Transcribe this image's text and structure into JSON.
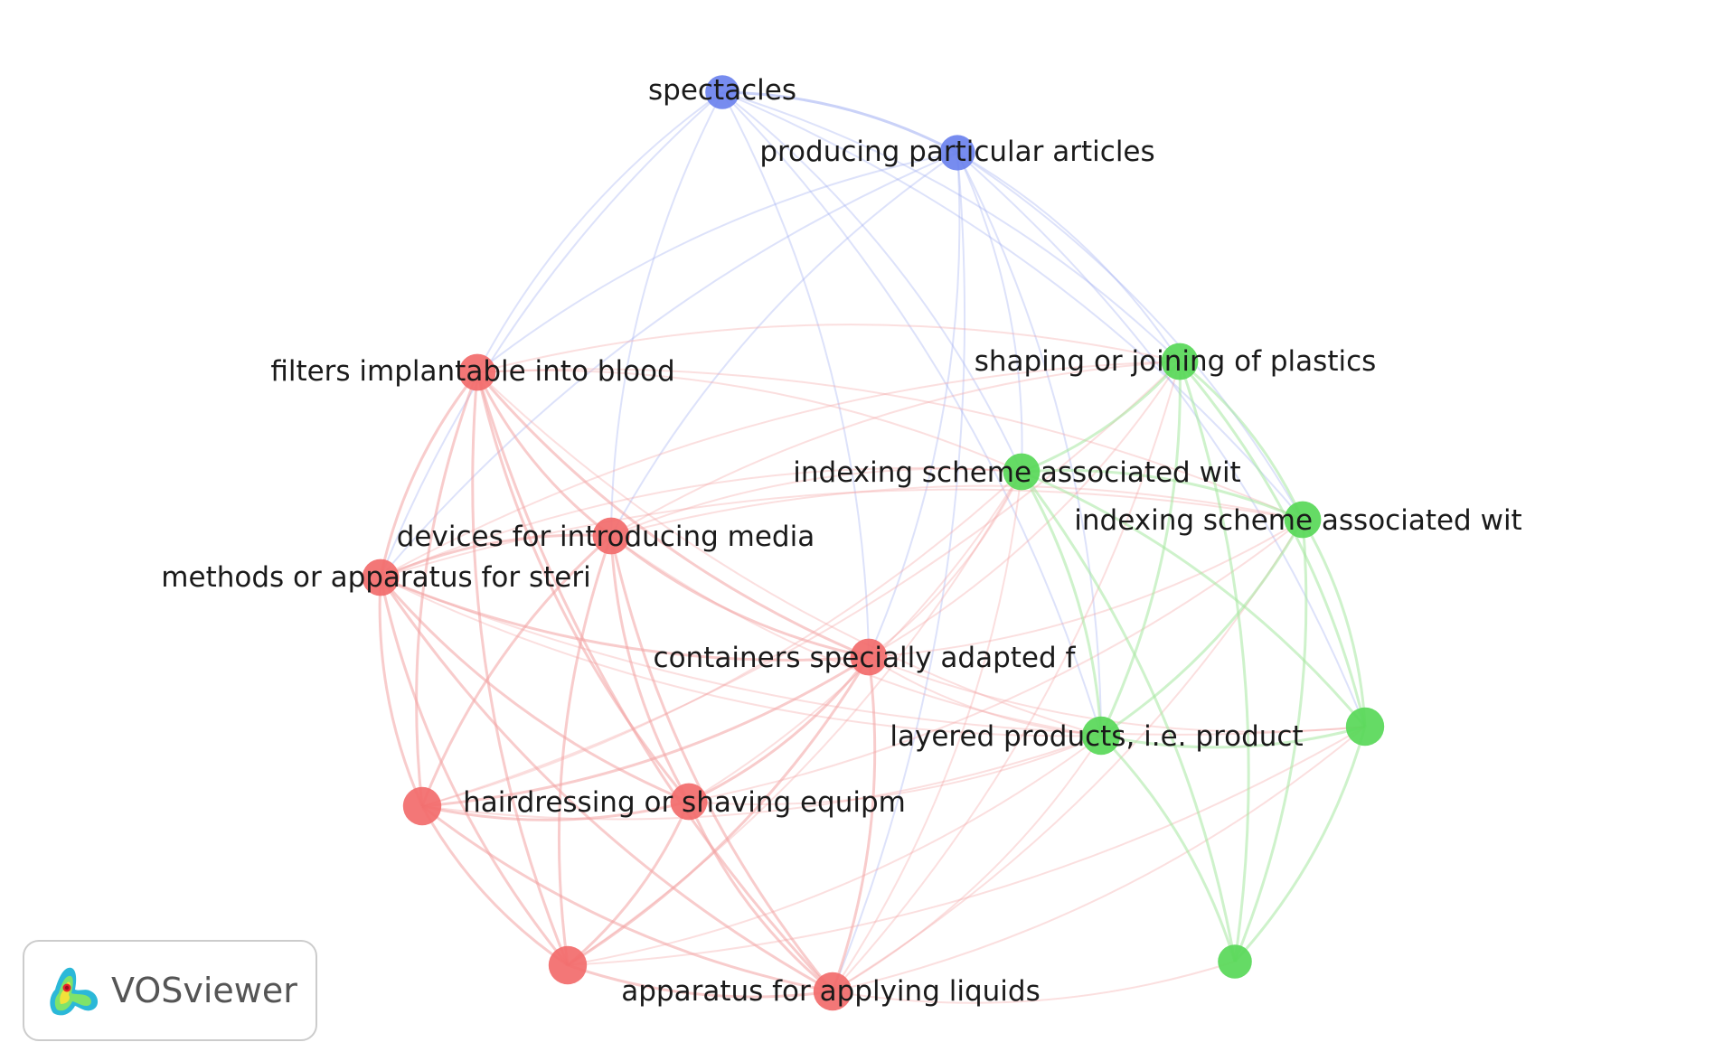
{
  "map": {
    "nodes": [
      {
        "id": "spectacles",
        "label": "spectacles",
        "cluster": "blue",
        "weight": 0.55
      },
      {
        "id": "producing",
        "label": "producing particular articles",
        "cluster": "blue",
        "weight": 0.6
      },
      {
        "id": "filters",
        "label": "filters implantable into blood",
        "cluster": "red",
        "weight": 0.65
      },
      {
        "id": "shaping",
        "label": "shaping or joining of plastics",
        "cluster": "green",
        "weight": 0.65
      },
      {
        "id": "indexing1",
        "label": "indexing scheme associated wit",
        "cluster": "green",
        "weight": 0.65
      },
      {
        "id": "indexing2",
        "label": "indexing scheme associated wit",
        "cluster": "green",
        "weight": 0.65
      },
      {
        "id": "devices",
        "label": "devices for introducing media",
        "cluster": "red",
        "weight": 0.65
      },
      {
        "id": "methods",
        "label": "methods or apparatus for steri",
        "cluster": "red",
        "weight": 0.65
      },
      {
        "id": "containers",
        "label": "containers specially adapted f",
        "cluster": "red",
        "weight": 0.65
      },
      {
        "id": "layered",
        "label": "layered products, i.e. product",
        "cluster": "green",
        "weight": 0.7
      },
      {
        "id": "green_unlabeled_a",
        "label": "",
        "cluster": "green",
        "weight": 0.7
      },
      {
        "id": "red_unlabeled_a",
        "label": "",
        "cluster": "red",
        "weight": 0.7
      },
      {
        "id": "hairdressing",
        "label": "hairdressing or shaving equipm",
        "cluster": "red",
        "weight": 0.65
      },
      {
        "id": "red_unlabeled_b",
        "label": "",
        "cluster": "red",
        "weight": 0.7
      },
      {
        "id": "apparatus",
        "label": "apparatus for applying liquids",
        "cluster": "red",
        "weight": 0.7
      },
      {
        "id": "green_unlabeled_b",
        "label": "",
        "cluster": "green",
        "weight": 0.55
      }
    ],
    "links": [
      [
        "spectacles",
        "producing"
      ],
      [
        "spectacles",
        "filters"
      ],
      [
        "spectacles",
        "methods"
      ],
      [
        "spectacles",
        "shaping"
      ],
      [
        "spectacles",
        "indexing1"
      ],
      [
        "spectacles",
        "indexing2"
      ],
      [
        "spectacles",
        "containers"
      ],
      [
        "spectacles",
        "layered"
      ],
      [
        "spectacles",
        "devices"
      ],
      [
        "producing",
        "shaping"
      ],
      [
        "producing",
        "indexing1"
      ],
      [
        "producing",
        "indexing2"
      ],
      [
        "producing",
        "layered"
      ],
      [
        "producing",
        "green_unlabeled_a"
      ],
      [
        "producing",
        "filters"
      ],
      [
        "producing",
        "methods"
      ],
      [
        "producing",
        "containers"
      ],
      [
        "producing",
        "devices"
      ],
      [
        "producing",
        "apparatus"
      ],
      [
        "filters",
        "methods"
      ],
      [
        "filters",
        "devices"
      ],
      [
        "filters",
        "containers"
      ],
      [
        "filters",
        "red_unlabeled_a"
      ],
      [
        "filters",
        "hairdressing"
      ],
      [
        "filters",
        "red_unlabeled_b"
      ],
      [
        "filters",
        "apparatus"
      ],
      [
        "filters",
        "indexing1"
      ],
      [
        "filters",
        "shaping"
      ],
      [
        "filters",
        "layered"
      ],
      [
        "filters",
        "indexing2"
      ],
      [
        "methods",
        "devices"
      ],
      [
        "methods",
        "containers"
      ],
      [
        "methods",
        "red_unlabeled_a"
      ],
      [
        "methods",
        "hairdressing"
      ],
      [
        "methods",
        "red_unlabeled_b"
      ],
      [
        "methods",
        "apparatus"
      ],
      [
        "methods",
        "indexing1"
      ],
      [
        "methods",
        "shaping"
      ],
      [
        "methods",
        "indexing2"
      ],
      [
        "methods",
        "layered"
      ],
      [
        "methods",
        "green_unlabeled_a"
      ],
      [
        "devices",
        "containers"
      ],
      [
        "devices",
        "red_unlabeled_a"
      ],
      [
        "devices",
        "hairdressing"
      ],
      [
        "devices",
        "red_unlabeled_b"
      ],
      [
        "devices",
        "apparatus"
      ],
      [
        "devices",
        "indexing1"
      ],
      [
        "devices",
        "indexing2"
      ],
      [
        "devices",
        "shaping"
      ],
      [
        "devices",
        "layered"
      ],
      [
        "containers",
        "red_unlabeled_a"
      ],
      [
        "containers",
        "hairdressing"
      ],
      [
        "containers",
        "red_unlabeled_b"
      ],
      [
        "containers",
        "apparatus"
      ],
      [
        "containers",
        "indexing1"
      ],
      [
        "containers",
        "shaping"
      ],
      [
        "containers",
        "layered"
      ],
      [
        "containers",
        "indexing2"
      ],
      [
        "containers",
        "green_unlabeled_a"
      ],
      [
        "red_unlabeled_a",
        "hairdressing"
      ],
      [
        "red_unlabeled_a",
        "red_unlabeled_b"
      ],
      [
        "red_unlabeled_a",
        "apparatus"
      ],
      [
        "red_unlabeled_a",
        "indexing1"
      ],
      [
        "red_unlabeled_a",
        "layered"
      ],
      [
        "red_unlabeled_a",
        "shaping"
      ],
      [
        "hairdressing",
        "red_unlabeled_b"
      ],
      [
        "hairdressing",
        "apparatus"
      ],
      [
        "hairdressing",
        "indexing1"
      ],
      [
        "hairdressing",
        "layered"
      ],
      [
        "hairdressing",
        "indexing2"
      ],
      [
        "red_unlabeled_b",
        "apparatus"
      ],
      [
        "red_unlabeled_b",
        "indexing1"
      ],
      [
        "red_unlabeled_b",
        "layered"
      ],
      [
        "red_unlabeled_b",
        "green_unlabeled_a"
      ],
      [
        "apparatus",
        "indexing1"
      ],
      [
        "apparatus",
        "layered"
      ],
      [
        "apparatus",
        "shaping"
      ],
      [
        "apparatus",
        "green_unlabeled_a"
      ],
      [
        "apparatus",
        "green_unlabeled_b"
      ],
      [
        "apparatus",
        "indexing2"
      ],
      [
        "shaping",
        "indexing1"
      ],
      [
        "shaping",
        "indexing2"
      ],
      [
        "shaping",
        "layered"
      ],
      [
        "shaping",
        "green_unlabeled_a"
      ],
      [
        "shaping",
        "green_unlabeled_b"
      ],
      [
        "indexing1",
        "indexing2"
      ],
      [
        "indexing1",
        "layered"
      ],
      [
        "indexing1",
        "green_unlabeled_a"
      ],
      [
        "indexing1",
        "green_unlabeled_b"
      ],
      [
        "indexing2",
        "layered"
      ],
      [
        "indexing2",
        "green_unlabeled_a"
      ],
      [
        "indexing2",
        "green_unlabeled_b"
      ],
      [
        "layered",
        "green_unlabeled_a"
      ],
      [
        "layered",
        "green_unlabeled_b"
      ],
      [
        "green_unlabeled_a",
        "green_unlabeled_b"
      ]
    ]
  },
  "colors": {
    "blue": "#6b82ee",
    "red": "#f26b6b",
    "green": "#58d858",
    "link_blue": "#9eadf2",
    "link_red": "#f3a3a3",
    "link_green": "#a5e8a0",
    "label": "#1a1a1a"
  },
  "brand": {
    "name": "VOSviewer",
    "icon": "vosviewer-logo-icon"
  }
}
